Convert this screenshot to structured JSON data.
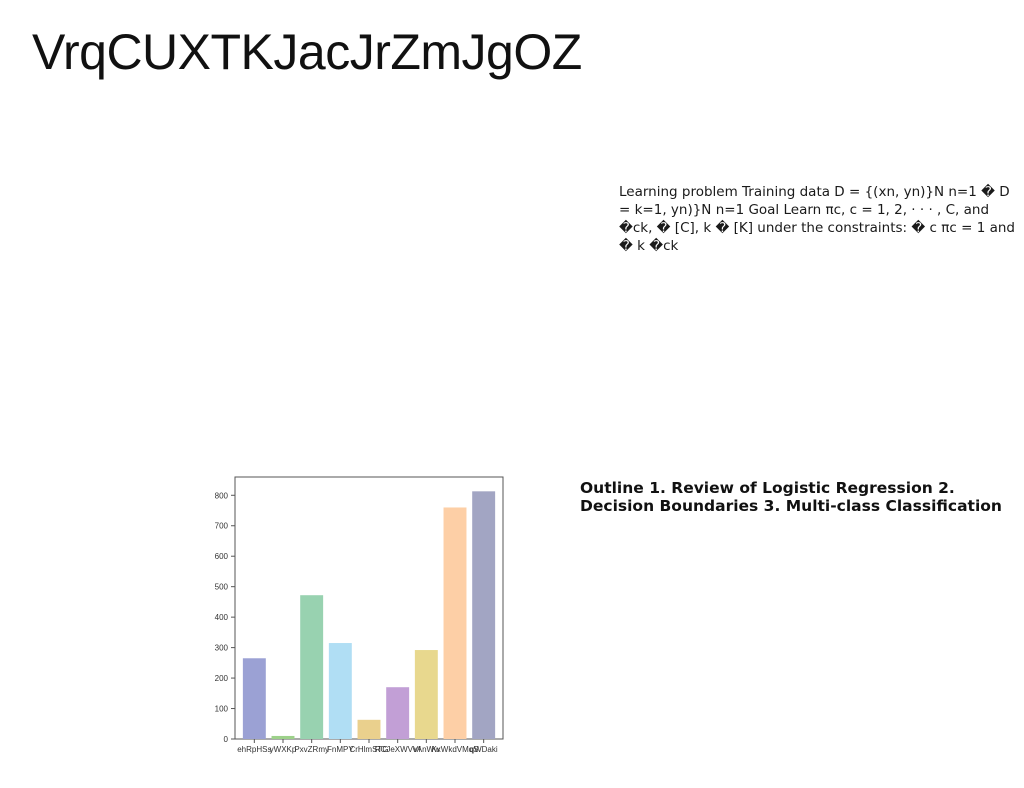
{
  "page": {
    "title": "VrqCUXTKJacJrZmJgOZ",
    "paragraph_1": "Learning problem Training data D = {(xn, yn)}N n=1 � D = k=1, yn)}N n=1 Goal Learn πc, c = 1, 2, · · · , C, and �ck, � [C], k � [K] under the constraints: � c πc = 1 and � k �ck",
    "paragraph_2": "Outline 1. Review of Logistic Regression 2. Decision Boundaries 3. Multi-class Classification"
  },
  "chart_data": {
    "type": "bar",
    "categories": [
      "ehRpHSs",
      "yWXKp",
      "PxvZRmy",
      "FnMPY",
      "CrHlmSTG",
      "RCJeXWVVf",
      "vAnWw",
      "KxWkdVMqS",
      "qWDaki"
    ],
    "values": [
      265,
      10,
      472,
      315,
      63,
      170,
      292,
      760,
      813
    ],
    "colors": [
      "#9ba1d4",
      "#9dd18a",
      "#98d2b0",
      "#b0def4",
      "#ead08d",
      "#c29fd6",
      "#e8d88e",
      "#fdcfa6",
      "#a2a5c3"
    ],
    "ylim": [
      0,
      860
    ],
    "yticks": [
      0,
      100,
      200,
      300,
      400,
      500,
      600,
      700,
      800
    ],
    "title": "",
    "xlabel": "",
    "ylabel": "",
    "grid": false
  }
}
